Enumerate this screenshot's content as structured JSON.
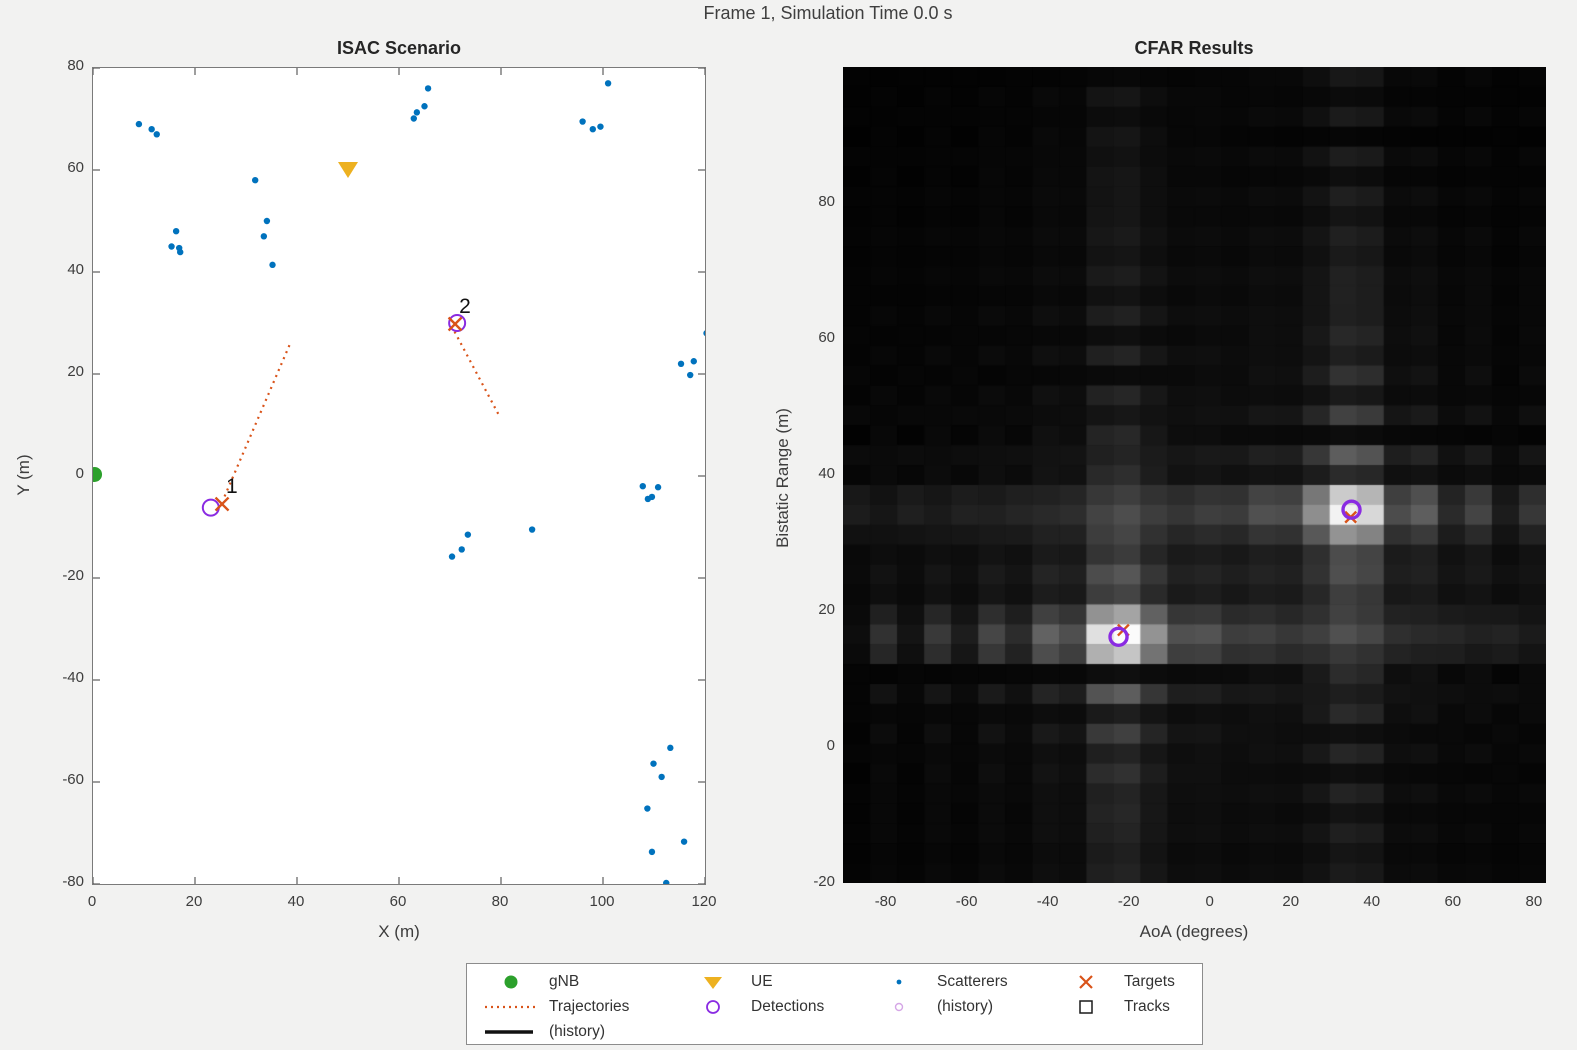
{
  "figure": {
    "title": "Frame 1, Simulation Time 0.0 s",
    "background": "#F2F2F1"
  },
  "colors": {
    "gnb": "#2CA02C",
    "ue": "#EDB120",
    "scatterer": "#0072BD",
    "target": "#D95319",
    "trajectory": "#D95319",
    "detection": "#8A2BE2",
    "detection_history": "#D5A6E6",
    "track": "#1a1a1a",
    "tick_text": "#3d3d3d"
  },
  "chart_data": [
    {
      "type": "scatter",
      "title": "ISAC Scenario",
      "xlabel": "X (m)",
      "ylabel": "Y (m)",
      "xlim": [
        0,
        120
      ],
      "ylim": [
        -80,
        80
      ],
      "xticks": [
        0,
        20,
        40,
        60,
        80,
        100,
        120
      ],
      "yticks": [
        -80,
        -60,
        -40,
        -20,
        0,
        20,
        40,
        60,
        80
      ],
      "grid": false,
      "series": [
        {
          "name": "gNB",
          "marker": "filled-circle",
          "color": "#2CA02C",
          "points": [
            [
              0.3,
              0.3
            ]
          ]
        },
        {
          "name": "UE",
          "marker": "triangle-down",
          "color": "#EDB120",
          "points": [
            [
              50,
              60
            ]
          ]
        },
        {
          "name": "Scatterers",
          "marker": "dot",
          "color": "#0072BD",
          "points": [
            [
              9,
              69
            ],
            [
              11.5,
              68
            ],
            [
              12.5,
              67
            ],
            [
              31.8,
              58
            ],
            [
              16.3,
              48
            ],
            [
              15.4,
              45
            ],
            [
              16.9,
              44.7
            ],
            [
              17.1,
              43.9
            ],
            [
              34.1,
              50
            ],
            [
              33.5,
              47
            ],
            [
              35.2,
              41.4
            ],
            [
              65.7,
              76
            ],
            [
              65,
              72.5
            ],
            [
              63.5,
              71.3
            ],
            [
              62.9,
              70.1
            ],
            [
              101,
              77
            ],
            [
              96,
              69.5
            ],
            [
              98,
              68
            ],
            [
              99.5,
              68.5
            ],
            [
              120.3,
              28
            ],
            [
              115.3,
              22
            ],
            [
              117.8,
              22.5
            ],
            [
              117.1,
              19.8
            ],
            [
              107.8,
              -2
            ],
            [
              110.8,
              -2.2
            ],
            [
              108.8,
              -4.5
            ],
            [
              109.6,
              -4.1
            ],
            [
              73.5,
              -11.5
            ],
            [
              86.1,
              -10.5
            ],
            [
              72.3,
              -14.4
            ],
            [
              70.4,
              -15.8
            ],
            [
              113.2,
              -53.3
            ],
            [
              109.9,
              -56.4
            ],
            [
              111.5,
              -59
            ],
            [
              108.7,
              -65.2
            ],
            [
              115.9,
              -71.7
            ],
            [
              109.6,
              -73.7
            ],
            [
              112.4,
              -79.8
            ]
          ]
        },
        {
          "name": "Targets",
          "marker": "x",
          "color": "#D95319",
          "points": [
            [
              25.3,
              -5.5
            ],
            [
              71,
              29.8
            ]
          ],
          "labels": [
            "1",
            "2"
          ]
        },
        {
          "name": "Detections",
          "marker": "open-circle",
          "color": "#8A2BE2",
          "points": [
            [
              23.1,
              -6.2
            ],
            [
              71.4,
              30
            ]
          ]
        },
        {
          "name": "Trajectories",
          "marker": "dotted-line",
          "color": "#D95319",
          "segments": [
            [
              [
                25.8,
                -4
              ],
              [
                38.8,
                26.3
              ]
            ],
            [
              [
                70.9,
                28.3
              ],
              [
                79.5,
                12.1
              ]
            ]
          ]
        }
      ]
    },
    {
      "type": "heatmap",
      "title": "CFAR Results",
      "xlabel": "AoA (degrees)",
      "ylabel": "Bistatic Range (m)",
      "xlim": [
        -90.5,
        83
      ],
      "ylim": [
        -20,
        100
      ],
      "xticks": [
        -80,
        -60,
        -40,
        -20,
        0,
        20,
        40,
        60,
        80
      ],
      "yticks": [
        -20,
        0,
        20,
        40,
        60,
        80
      ],
      "colormap": "gray",
      "bins": {
        "aoa": 26,
        "range": 41
      },
      "peaks": [
        {
          "aoa": -22.5,
          "range": 16.2,
          "amplitude": 1.0
        },
        {
          "aoa": 35,
          "range": 34.8,
          "amplitude": 0.97
        }
      ],
      "lobe_widths": {
        "aoa_first_null_deg": 13,
        "range_first_null_m": 5.5
      },
      "detections": [
        [
          -22.5,
          16.2
        ],
        [
          35,
          34.9
        ]
      ],
      "targets": [
        [
          -21.3,
          17.2
        ],
        [
          34.8,
          33.8
        ]
      ]
    }
  ],
  "legend": {
    "items": [
      {
        "row": 0,
        "col": 0,
        "icon": "gnb-marker",
        "label": "gNB"
      },
      {
        "row": 0,
        "col": 1,
        "icon": "ue-marker",
        "label": "UE"
      },
      {
        "row": 0,
        "col": 2,
        "icon": "scatterer-marker",
        "label": "Scatterers"
      },
      {
        "row": 0,
        "col": 3,
        "icon": "target-marker",
        "label": "Targets"
      },
      {
        "row": 1,
        "col": 0,
        "icon": "trajectory-line",
        "label": "Trajectories"
      },
      {
        "row": 1,
        "col": 1,
        "icon": "detection-marker",
        "label": "Detections"
      },
      {
        "row": 1,
        "col": 2,
        "icon": "history-marker",
        "label": "(history)"
      },
      {
        "row": 1,
        "col": 3,
        "icon": "track-marker",
        "label": "Tracks"
      },
      {
        "row": 2,
        "col": 0,
        "icon": "history-line",
        "label": "(history)"
      }
    ]
  }
}
